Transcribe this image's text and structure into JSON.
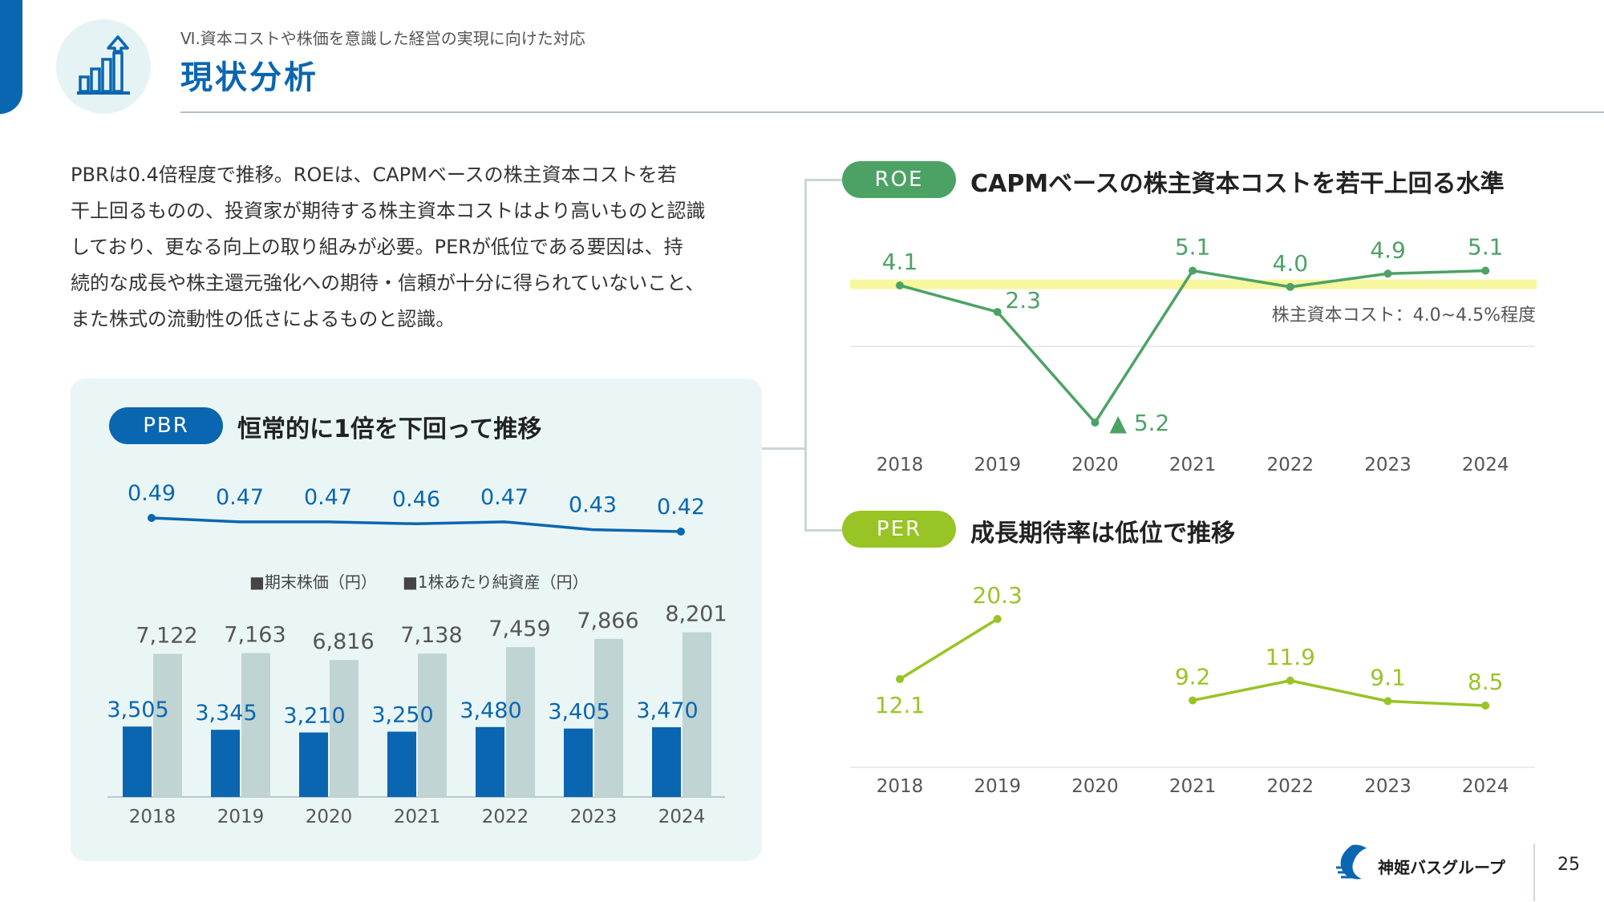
{
  "header": {
    "breadcrumb": "Ⅵ.資本コストや株価を意識した経営の実現に向けた対応",
    "title": "現状分析",
    "icon": "bar-chart-growth-icon"
  },
  "description": [
    "PBRは0.4倍程度で推移。ROEは、CAPMベースの株主資本コストを若",
    "干上回るものの、投資家が期待する株主資本コストはより高いものと認識",
    "しており、更なる向上の取り組みが必要。PERが低位である要因は、持",
    "続的な成長や株主還元強化への期待・信頼が十分に得られていないこと、",
    "また株式の流動性の低さによるものと認識。"
  ],
  "colors": {
    "pbr_blue": "#0a66b0",
    "bps_gray": "#c0d4d3",
    "roe_green": "#4ca264",
    "per_green": "#98c425",
    "cost_band": "#f7f7a0",
    "panel_bg": "#eaf6f6"
  },
  "pbr_panel": {
    "pill": "PBR",
    "title": "恒常的に1倍を下回って推移"
  },
  "roe_panel": {
    "pill": "ROE",
    "title": "CAPMベースの株主資本コストを若干上回る水準"
  },
  "per_panel": {
    "pill": "PER",
    "title": "成長期待率は低位で推移"
  },
  "chart_data": [
    {
      "id": "pbr_line",
      "type": "line",
      "x": [
        "2018",
        "2019",
        "2020",
        "2021",
        "2022",
        "2023",
        "2024"
      ],
      "values": [
        0.49,
        0.47,
        0.47,
        0.46,
        0.47,
        0.43,
        0.42
      ],
      "labels": [
        "0.49",
        "0.47",
        "0.47",
        "0.46",
        "0.47",
        "0.43",
        "0.42"
      ]
    },
    {
      "id": "price_bps_bars",
      "type": "bar",
      "categories": [
        "2018",
        "2019",
        "2020",
        "2021",
        "2022",
        "2023",
        "2024"
      ],
      "legend": [
        "■期末株価（円）",
        "■1株あたり純資産（円）"
      ],
      "series": [
        {
          "name": "期末株価（円）",
          "values": [
            3505,
            3345,
            3210,
            3250,
            3480,
            3405,
            3470
          ],
          "labels": [
            "3,505",
            "3,345",
            "3,210",
            "3,250",
            "3,480",
            "3,405",
            "3,470"
          ]
        },
        {
          "name": "1株あたり純資産（円）",
          "values": [
            7122,
            7163,
            6816,
            7138,
            7459,
            7866,
            8201
          ],
          "labels": [
            "7,122",
            "7,163",
            "6,816",
            "7,138",
            "7,459",
            "7,866",
            "8,201"
          ]
        }
      ],
      "ylim": [
        0,
        8500
      ]
    },
    {
      "id": "roe_line",
      "type": "line",
      "x": [
        "2018",
        "2019",
        "2020",
        "2021",
        "2022",
        "2023",
        "2024"
      ],
      "values": [
        4.1,
        2.3,
        -5.2,
        5.1,
        4.0,
        4.9,
        5.1
      ],
      "labels": [
        "4.1",
        "2.3",
        "▲ 5.2",
        "5.1",
        "4.0",
        "4.9",
        "5.1"
      ],
      "reference_band": {
        "range": [
          4.0,
          4.5
        ],
        "label": "株主資本コスト：4.0~4.5%程度"
      },
      "ylim": [
        -6,
        6.5
      ]
    },
    {
      "id": "per_line",
      "type": "line",
      "x": [
        "2018",
        "2019",
        "2020",
        "2021",
        "2022",
        "2023",
        "2024"
      ],
      "values": [
        12.1,
        20.3,
        null,
        9.2,
        11.9,
        9.1,
        8.5
      ],
      "labels": [
        "12.1",
        "20.3",
        "",
        "9.2",
        "11.9",
        "9.1",
        "8.5"
      ],
      "ylim": [
        0,
        24
      ]
    }
  ],
  "footer": {
    "brand": "神姫バスグループ",
    "page": "25"
  }
}
